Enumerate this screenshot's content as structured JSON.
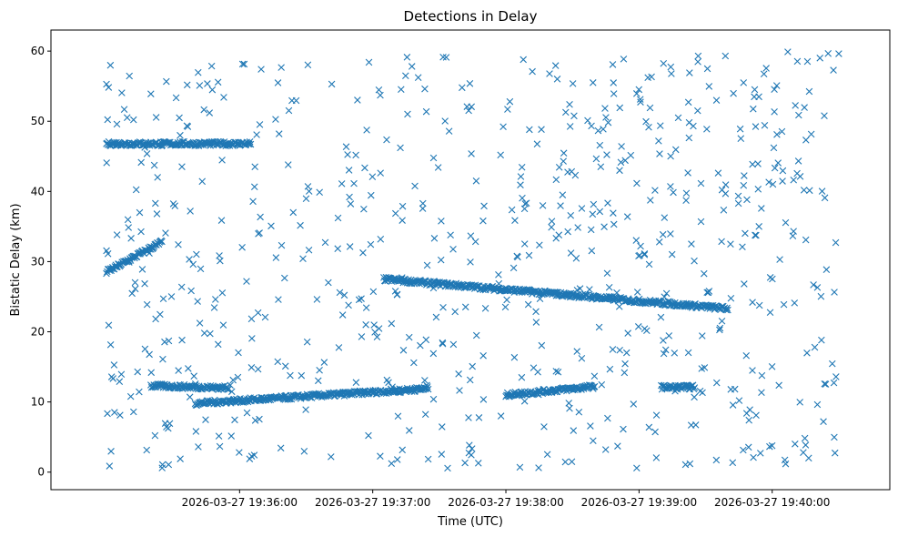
{
  "chart_data": {
    "type": "scatter",
    "title": "Detections in Delay",
    "xlabel": "Time (UTC)",
    "ylabel": "Bistatic Delay (km)",
    "marker": "x",
    "color": "#1f77b4",
    "grid": false,
    "xlim": [
      "19:34:35",
      "19:40:53"
    ],
    "ylim": [
      -2.5,
      63
    ],
    "xticks": [
      {
        "value": "19:36:00",
        "label": "2026-03-27 19:36:00"
      },
      {
        "value": "19:37:00",
        "label": "2026-03-27 19:37:00"
      },
      {
        "value": "19:38:00",
        "label": "2026-03-27 19:38:00"
      },
      {
        "value": "19:39:00",
        "label": "2026-03-27 19:39:00"
      },
      {
        "value": "19:40:00",
        "label": "2026-03-27 19:40:00"
      }
    ],
    "yticks": [
      0,
      10,
      20,
      30,
      40,
      50,
      60
    ],
    "time_range": [
      "19:35:00",
      "19:40:30"
    ],
    "tracks": [
      {
        "name": "delay 47 km band",
        "start": "19:35:00",
        "end": "19:36:05",
        "delay_start": 46.8,
        "delay_end": 46.8
      },
      {
        "name": "rising track",
        "start": "19:35:00",
        "end": "19:35:25",
        "delay_start": 28.5,
        "delay_end": 32.8
      },
      {
        "name": "descending track",
        "start": "19:37:05",
        "end": "19:39:40",
        "delay_start": 27.5,
        "delay_end": 23.3
      },
      {
        "name": "delay 12 km band A",
        "start": "19:35:20",
        "end": "19:35:55",
        "delay_start": 12.3,
        "delay_end": 12.0
      },
      {
        "name": "delay 10-12 km track",
        "start": "19:35:40",
        "end": "19:37:25",
        "delay_start": 9.8,
        "delay_end": 11.9
      },
      {
        "name": "delay 11-12 km track",
        "start": "19:38:00",
        "end": "19:38:40",
        "delay_start": 11.0,
        "delay_end": 12.2
      },
      {
        "name": "delay 12 km band B",
        "start": "19:39:10",
        "end": "19:39:25",
        "delay_start": 12.1,
        "delay_end": 12.1
      }
    ],
    "clutter_points": 700,
    "clutter_delay_range": [
      0.5,
      60
    ]
  }
}
